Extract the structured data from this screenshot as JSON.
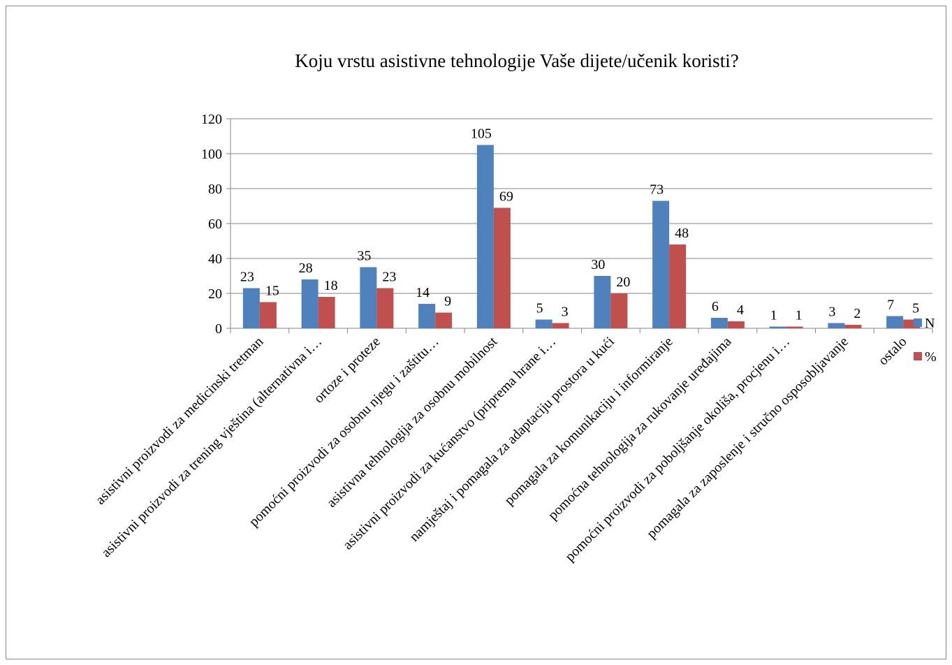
{
  "chart_data": {
    "type": "bar",
    "title": "Koju vrstu asistivne tehnologije Vaše dijete/učenik koristi?",
    "categories": [
      "asistivni proizvodi za medicinski tretman",
      "asistivni proizvodi za trening vještina (alternativna i…",
      "ortoze i proteze",
      "pomoćni proizvodi za osobnu njegu i zaštitu…",
      "asistivna tehnologija za osobnu mobilnost",
      "asistivni proizvodi za kućanstvo (priprema hrane i…",
      "namještaj i pomagala za adaptaciju prostora u kući",
      "pomagala za komunikaciju i informiranje",
      "pomoćna tehnologija za rukovanje uređajima",
      "pomoćni proizvodi za poboljšanje okoliša, procjenu i…",
      "pomagala za zaposlenje i stručno osposobljavanje",
      "ostalo"
    ],
    "series": [
      {
        "name": "N",
        "color": "#4f81bd",
        "values": [
          23,
          28,
          35,
          14,
          105,
          5,
          30,
          73,
          6,
          1,
          3,
          7
        ]
      },
      {
        "name": "%",
        "color": "#c0504d",
        "values": [
          15,
          18,
          23,
          9,
          69,
          3,
          20,
          48,
          4,
          1,
          2,
          5
        ]
      }
    ],
    "ylim": [
      0,
      120
    ],
    "yticks": [
      0,
      20,
      40,
      60,
      80,
      100,
      120
    ],
    "grid": true,
    "legend": "right"
  }
}
